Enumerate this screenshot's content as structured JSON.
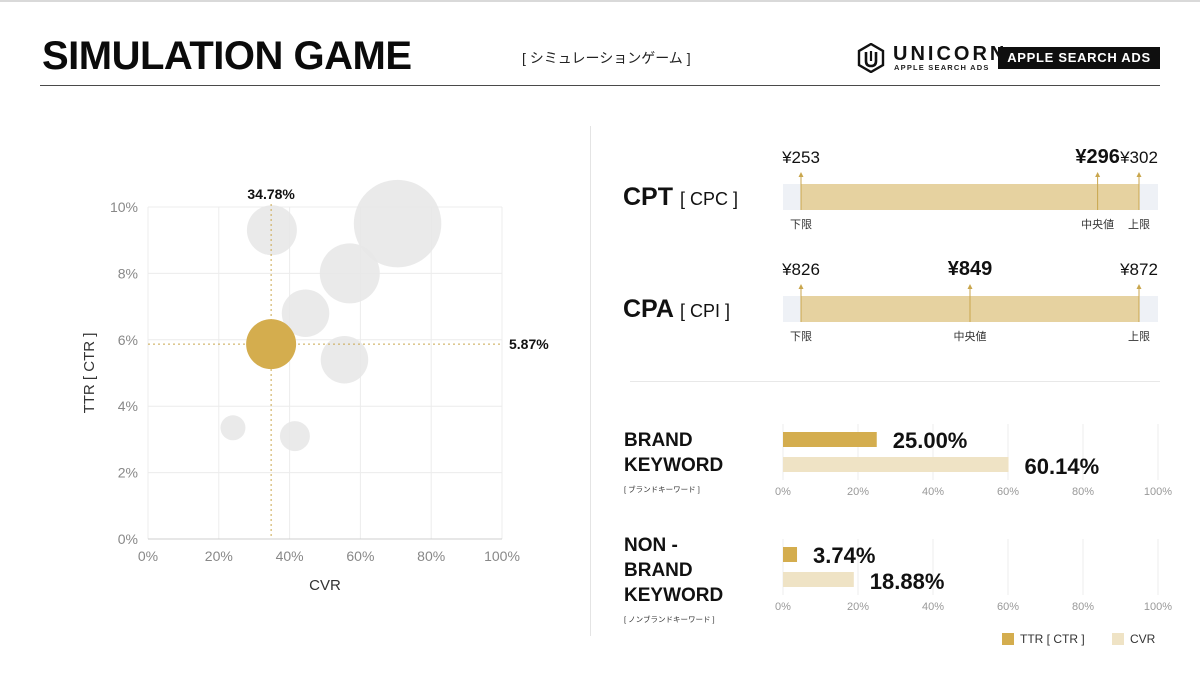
{
  "header": {
    "title": "SIMULATION GAME",
    "subtitle": "[ シミュレーションゲーム ]",
    "brand_name": "UNICORN",
    "brand_sub": "APPLE SEARCH ADS",
    "badge": "APPLE SEARCH ADS"
  },
  "colors": {
    "gold": "#d4ad4e",
    "cream": "#efe3c5",
    "range_fill": "#e6d2a0",
    "range_bg": "#eef1f6",
    "bubble_gray": "#e7e7e7",
    "grid": "#ececec"
  },
  "metrics": [
    {
      "name": "CPT",
      "sub": "[ CPC ]",
      "min": "¥253",
      "mid": "¥296",
      "max": "¥302",
      "min_label": "下限",
      "mid_label": "中央値",
      "max_label": "上限",
      "min_value": 253,
      "mid_value": 296,
      "max_value": 302
    },
    {
      "name": "CPA",
      "sub": "[ CPI ]",
      "min": "¥826",
      "mid": "¥849",
      "max": "¥872",
      "min_label": "下限",
      "mid_label": "中央値",
      "max_label": "上限",
      "min_value": 826,
      "mid_value": 849,
      "max_value": 872
    }
  ],
  "keywords": [
    {
      "title_lines": [
        "BRAND",
        "KEYWORD"
      ],
      "sub": "[ ブランドキーワード ]"
    },
    {
      "title_lines": [
        "NON -",
        "BRAND",
        "KEYWORD"
      ],
      "sub": "[ ノンブランドキーワード ]"
    }
  ],
  "chart_data": [
    {
      "type": "scatter",
      "title": "",
      "xlabel": "CVR",
      "ylabel": "TTR  [ CTR ]",
      "xlim": [
        0,
        100
      ],
      "ylim": [
        0,
        10
      ],
      "x_ticks": [
        "0%",
        "20%",
        "40%",
        "60%",
        "80%",
        "100%"
      ],
      "y_ticks": [
        "0%",
        "2%",
        "4%",
        "6%",
        "8%",
        "10%"
      ],
      "highlight": {
        "x": 34.78,
        "y": 5.87,
        "x_label": "34.78%",
        "y_label": "5.87%",
        "bubble_size": 1.0
      },
      "points": [
        {
          "x": 70.5,
          "y": 9.5,
          "size": 1.75
        },
        {
          "x": 35,
          "y": 9.3,
          "size": 1.0
        },
        {
          "x": 57,
          "y": 8.0,
          "size": 1.2
        },
        {
          "x": 44.5,
          "y": 6.8,
          "size": 0.95
        },
        {
          "x": 55.5,
          "y": 5.4,
          "size": 0.95
        },
        {
          "x": 24,
          "y": 3.35,
          "size": 0.5
        },
        {
          "x": 41.5,
          "y": 3.1,
          "size": 0.6
        }
      ]
    },
    {
      "type": "bar",
      "orientation": "horizontal",
      "title": "BRAND KEYWORD",
      "series": [
        {
          "name": "TTR [ CTR ]",
          "value": 25.0,
          "label": "25.00%"
        },
        {
          "name": "CVR",
          "value": 60.14,
          "label": "60.14%"
        }
      ],
      "xlim": [
        0,
        100
      ],
      "ticks": [
        "0%",
        "20%",
        "40%",
        "60%",
        "80%",
        "100%"
      ]
    },
    {
      "type": "bar",
      "orientation": "horizontal",
      "title": "NON - BRAND KEYWORD",
      "series": [
        {
          "name": "TTR [ CTR ]",
          "value": 3.74,
          "label": "3.74%"
        },
        {
          "name": "CVR",
          "value": 18.88,
          "label": "18.88%"
        }
      ],
      "xlim": [
        0,
        100
      ],
      "ticks": [
        "0%",
        "20%",
        "40%",
        "60%",
        "80%",
        "100%"
      ]
    }
  ],
  "legend": [
    {
      "label": "TTR [ CTR ]"
    },
    {
      "label": "CVR"
    }
  ]
}
